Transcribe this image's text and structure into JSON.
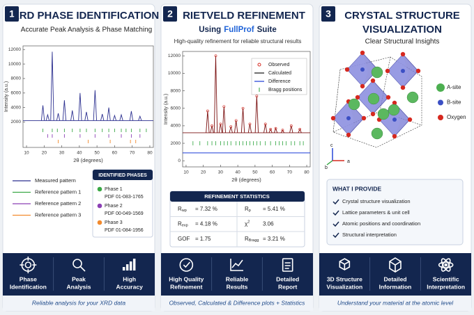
{
  "panels": [
    {
      "number": "1",
      "title": [
        "XRD PHASE IDENTIFICATION"
      ],
      "subtitle": [
        "Accurate Peak Analysis & Phase Matching"
      ],
      "chart": {
        "y_label": "Intensity (a.u.)",
        "x_label": "2θ (degrees)",
        "xlim": [
          8,
          82
        ],
        "ylim": [
          -1500,
          12500
        ],
        "xticks": [
          10,
          20,
          30,
          40,
          50,
          60,
          70,
          80
        ],
        "yticks": [
          2000,
          4000,
          6000,
          8000,
          10000,
          12000
        ],
        "color": "#2b2f8f",
        "baseline": 2200,
        "peaks": {
          "x": [
            19.3,
            22,
            24.6,
            28,
            31.5,
            36,
            40.4,
            44,
            48.9,
            53,
            56.7,
            60,
            63.8,
            69.5,
            74.4
          ],
          "y": [
            4300,
            3000,
            11700,
            3200,
            5000,
            3600,
            6000,
            3400,
            6400,
            3100,
            4000,
            2900,
            3000,
            3500,
            2800
          ]
        },
        "references": [
          {
            "color": "#3aa845",
            "positions": [
              19.3,
              24.6,
              27.5,
              31.5,
              36,
              40.4,
              44,
              48.9,
              53,
              56.7,
              60,
              63.8,
              66.5,
              69.5,
              74.4,
              78
            ]
          },
          {
            "color": "#8b3fb5",
            "positions": [
              22,
              24.6,
              31.5,
              40.4,
              48.9,
              56.7,
              63.8,
              69.5,
              74.4
            ]
          },
          {
            "color": "#f28a2e",
            "positions": [
              28,
              45,
              57.5,
              69,
              72
            ]
          }
        ]
      },
      "legend": [
        {
          "label": "Measured pattern",
          "color": "#2b2f8f"
        },
        {
          "label": "Reference pattern 1",
          "color": "#3aa845"
        },
        {
          "label": "Reference pattern 2",
          "color": "#8b3fb5"
        },
        {
          "label": "Reference pattern 3",
          "color": "#f28a2e"
        }
      ],
      "phases": {
        "title": "IDENTIFIED PHASES",
        "items": [
          {
            "name": "Phase 1",
            "pdf": "PDF 01-083-1765",
            "color": "#3aa845"
          },
          {
            "name": "Phase 2",
            "pdf": "PDF 00-049-1569",
            "color": "#8b3fb5"
          },
          {
            "name": "Phase 3",
            "pdf": "PDF 01-084-1956",
            "color": "#f28a2e"
          }
        ]
      },
      "features": [
        [
          "Phase",
          "Identification"
        ],
        [
          "Peak",
          "Analysis"
        ],
        [
          "High",
          "Accuracy"
        ]
      ],
      "caption": "Reliable analysis for your XRD data"
    },
    {
      "number": "2",
      "title": [
        "RIETVELD REFINEMENT"
      ],
      "subtitle_parts": [
        "Using",
        "FullProf",
        "Suite"
      ],
      "subtitle": [
        "High-quality refinement for reliable structural results"
      ],
      "chart": {
        "y_label": "Intensity (a.u.)",
        "x_label": "2θ (degrees)",
        "xlim": [
          8,
          82
        ],
        "ylim": [
          -700,
          12500
        ],
        "xticks": [
          10,
          20,
          30,
          40,
          50,
          60,
          70,
          80
        ],
        "yticks": [
          0,
          2000,
          4000,
          6000,
          8000,
          10000,
          12000
        ],
        "color": "#7a1010",
        "baseline": 3200,
        "peaks": {
          "x": [
            22.5,
            25,
            27.2,
            30,
            32,
            36,
            39,
            43,
            47,
            51,
            56,
            59,
            62,
            66,
            71,
            76
          ],
          "y": [
            5700,
            4000,
            12000,
            4200,
            6200,
            3900,
            4600,
            6000,
            4200,
            7400,
            4200,
            3600,
            3700,
            3500,
            4000,
            3600
          ]
        },
        "bragg": {
          "level": 2000,
          "positions": [
            14,
            18,
            22.5,
            25,
            27.2,
            30,
            32,
            34,
            36,
            39,
            41,
            43,
            45,
            47,
            49,
            51,
            53,
            56,
            59,
            62,
            64,
            66,
            68,
            71,
            73,
            76,
            78
          ]
        },
        "difference_level": 900
      },
      "legend": [
        {
          "label": "Observed",
          "color": "#d6281f"
        },
        {
          "label": "Calculated",
          "color": "#111111"
        },
        {
          "label": "Difference",
          "color": "#1a3ad6"
        },
        {
          "label": "Bragg positions",
          "color": "#2aa33a"
        }
      ],
      "stats": {
        "title": "REFINEMENT STATISTICS",
        "rows": [
          [
            {
              "symbol": "R",
              "sub": "wp",
              "value": "= 7.32 %"
            },
            {
              "symbol": "R",
              "sub": "p",
              "value": "= 5.41 %"
            }
          ],
          [
            {
              "symbol": "R",
              "sub": "exp",
              "value": "= 4.18 %"
            },
            {
              "symbol": "χ",
              "sup": "2",
              "value": "3.06"
            }
          ],
          [
            {
              "symbol": "GOF",
              "value": "= 1.75"
            },
            {
              "symbol": "R",
              "sub": "Bragg",
              "value": "= 3.21 %"
            }
          ]
        ]
      },
      "features": [
        [
          "High Quality",
          "Refinement"
        ],
        [
          "Reliable",
          "Results"
        ],
        [
          "Detailed",
          "Report"
        ]
      ],
      "caption": "Observed, Calculated & Difference plots + Statistics"
    },
    {
      "number": "3",
      "title": [
        "CRYSTAL STRUCTURE",
        "VISUALIZATION"
      ],
      "subtitle": [
        "Clear Structural Insights"
      ],
      "legend": [
        {
          "label": "A-site",
          "color": "#4caf50"
        },
        {
          "label": "B-site",
          "color": "#3b4fc4"
        },
        {
          "label": "Oxygen",
          "color": "#d6281f"
        }
      ],
      "axes": [
        "c",
        "b",
        "a"
      ],
      "provide": {
        "title": "WHAT I PROVIDE",
        "items": [
          "Crystal structure visualization",
          "Lattice parameters & unit cell",
          "Atomic positions and coordination",
          "Structural interpretation"
        ]
      },
      "features": [
        [
          "3D Structure",
          "Visualization"
        ],
        [
          "Detailed",
          "Information"
        ],
        [
          "Scientific",
          "Interpretation"
        ]
      ],
      "caption": "Understand your material at the atomic level"
    }
  ]
}
